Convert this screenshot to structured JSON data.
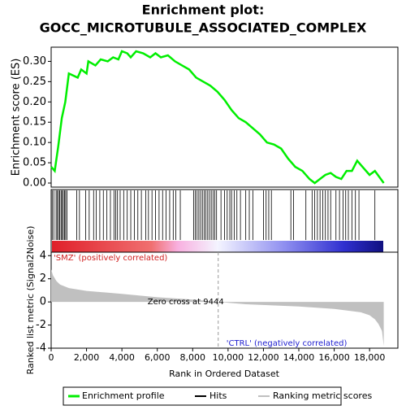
{
  "chart_data": [
    {
      "type": "line",
      "title": "Enrichment plot:",
      "subtitle": "GOCC_MICROTUBULE_ASSOCIATED_COMPLEX",
      "ylabel": "Enrichment score (ES)",
      "xlim": [
        0,
        19600
      ],
      "ylim": [
        -0.01,
        0.335
      ],
      "yticks": [
        {
          "value": 0,
          "label": "0.00"
        },
        {
          "value": 0.05,
          "label": "0.05"
        },
        {
          "value": 0.1,
          "label": "0.10"
        },
        {
          "value": 0.15,
          "label": "0.15"
        },
        {
          "value": 0.2,
          "label": "0.20"
        },
        {
          "value": 0.25,
          "label": "0.25"
        },
        {
          "value": 0.3,
          "label": "0.30"
        }
      ],
      "x": [
        0,
        200,
        400,
        600,
        800,
        1000,
        1500,
        1700,
        2000,
        2100,
        2500,
        2800,
        3200,
        3500,
        3800,
        4000,
        4300,
        4500,
        4800,
        5200,
        5600,
        5900,
        6200,
        6600,
        7000,
        7400,
        7800,
        8200,
        8600,
        9000,
        9400,
        9800,
        10200,
        10600,
        11000,
        11400,
        11800,
        12200,
        12600,
        13000,
        13400,
        13800,
        14200,
        14600,
        14900,
        15200,
        15500,
        15800,
        16100,
        16400,
        16700,
        17000,
        17300,
        17600,
        18000,
        18300,
        18800
      ],
      "series": [
        {
          "name": "Enrichment profile",
          "color": "#00ee00",
          "values": [
            0.04,
            0.03,
            0.09,
            0.16,
            0.2,
            0.27,
            0.26,
            0.28,
            0.27,
            0.3,
            0.29,
            0.305,
            0.3,
            0.31,
            0.305,
            0.325,
            0.32,
            0.31,
            0.325,
            0.32,
            0.31,
            0.32,
            0.31,
            0.315,
            0.3,
            0.29,
            0.28,
            0.26,
            0.25,
            0.24,
            0.225,
            0.205,
            0.18,
            0.16,
            0.15,
            0.135,
            0.12,
            0.1,
            0.095,
            0.085,
            0.06,
            0.04,
            0.03,
            0.01,
            0.0,
            0.01,
            0.02,
            0.025,
            0.015,
            0.01,
            0.03,
            0.03,
            0.055,
            0.04,
            0.02,
            0.03,
            0.0
          ]
        }
      ]
    },
    {
      "type": "hits",
      "name": "Hits",
      "color": "#000000",
      "xlim": [
        0,
        19600
      ],
      "hits": [
        60,
        150,
        280,
        350,
        420,
        480,
        560,
        620,
        690,
        760,
        820,
        900,
        1450,
        1600,
        1950,
        2150,
        2400,
        2550,
        2750,
        2950,
        3150,
        3350,
        3550,
        3650,
        3750,
        3900,
        4100,
        4300,
        4500,
        4700,
        4900,
        5100,
        5350,
        5500,
        5700,
        5900,
        6100,
        6300,
        6500,
        6700,
        6900,
        7050,
        7300,
        8050,
        8150,
        8250,
        8350,
        8450,
        8550,
        8650,
        8750,
        8850,
        8950,
        9050,
        9150,
        9250,
        9350,
        9600,
        9800,
        9950,
        10100,
        10200,
        10350,
        10500,
        10700,
        11000,
        11200,
        11400,
        12000,
        12150,
        12300,
        12450,
        13550,
        13700,
        14400,
        14750,
        14900,
        15050,
        15200,
        15350,
        15500,
        15650,
        15800,
        16100,
        16300,
        16500,
        16650,
        16800,
        17000,
        17200,
        17400,
        18300
      ]
    },
    {
      "type": "area",
      "name": "Ranking metric scores",
      "color": "#c0c0c0",
      "ylabel": "Ranked list metric (Signal2Noise)",
      "xlabel": "Rank in Ordered Dataset",
      "xlim": [
        0,
        19600
      ],
      "ylim": [
        -4,
        4.3
      ],
      "xticks": [
        0,
        {
          "value": 2000,
          "label": "2,000"
        },
        {
          "value": 4000,
          "label": "4,000"
        },
        {
          "value": 6000,
          "label": "6,000"
        },
        {
          "value": 8000,
          "label": "8,000"
        },
        {
          "value": 10000,
          "label": "10,000"
        },
        {
          "value": 12000,
          "label": "12,000"
        },
        {
          "value": 14000,
          "label": "14,000"
        },
        {
          "value": 16000,
          "label": "16,000"
        },
        {
          "value": 18000,
          "label": "18,000"
        }
      ],
      "yticks": [
        -4,
        -2,
        0,
        2,
        4
      ],
      "x": [
        0,
        100,
        300,
        500,
        1000,
        2000,
        4000,
        6000,
        8000,
        9444,
        11000,
        14000,
        16000,
        17500,
        18000,
        18300,
        18500,
        18700,
        18800
      ],
      "values": [
        2.8,
        2.3,
        1.8,
        1.5,
        1.2,
        0.95,
        0.7,
        0.4,
        0.2,
        0,
        -0.2,
        -0.4,
        -0.6,
        -0.9,
        -1.15,
        -1.5,
        -1.9,
        -2.5,
        -3.8
      ],
      "zero_cross": 9444,
      "annotations": [
        "'SMZ' (positively correlated)",
        "Zero cross at 9444",
        "'CTRL' (negatively correlated)"
      ]
    }
  ]
}
